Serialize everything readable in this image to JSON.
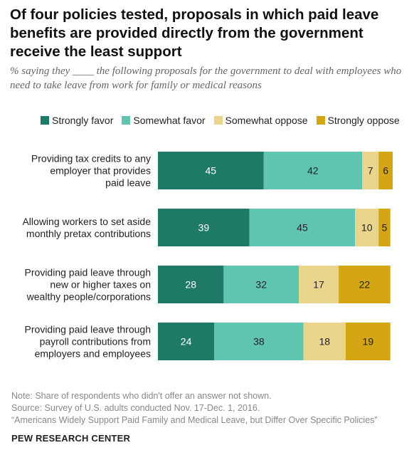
{
  "chart_data": {
    "type": "bar",
    "orientation": "horizontal",
    "stacked": true,
    "title": "Of four policies tested, proposals in which paid leave benefits are provided directly from the government receive the least support",
    "subtitle": "% saying they ____ the following proposals for the government to deal with employees who need to take leave from work for family or medical reasons",
    "categories": [
      [
        "Providing tax credits to any",
        "employer that provides",
        "paid leave"
      ],
      [
        "Allowing workers to set aside",
        "monthly pretax contributions"
      ],
      [
        "Providing paid leave through",
        "new or higher taxes on",
        "wealthy people/corporations"
      ],
      [
        "Providing paid leave through",
        "payroll contributions from",
        "employers and employees"
      ]
    ],
    "series": [
      {
        "name": "Strongly favor",
        "color": "#1f7a65",
        "label_color": "#ffffff",
        "values": [
          45,
          39,
          28,
          24
        ]
      },
      {
        "name": "Somewhat favor",
        "color": "#5fc5b1",
        "label_color": "#222222",
        "values": [
          42,
          45,
          32,
          38
        ]
      },
      {
        "name": "Somewhat oppose",
        "color": "#e9d58b",
        "label_color": "#222222",
        "values": [
          7,
          10,
          17,
          18
        ]
      },
      {
        "name": "Strongly oppose",
        "color": "#d4a514",
        "label_color": "#222222",
        "values": [
          6,
          5,
          22,
          19
        ]
      }
    ],
    "xlim": [
      0,
      100
    ],
    "legend_position": "top",
    "grid": false
  },
  "notes": {
    "note": "Note: Share of respondents who didn't offer an answer not shown.",
    "source": "Source: Survey of U.S. adults conducted Nov. 17-Dec. 1, 2016.",
    "report": "“Americans Widely Support Paid Family and Medical Leave, but Differ Over Specific Policies”",
    "org": "PEW RESEARCH CENTER"
  }
}
